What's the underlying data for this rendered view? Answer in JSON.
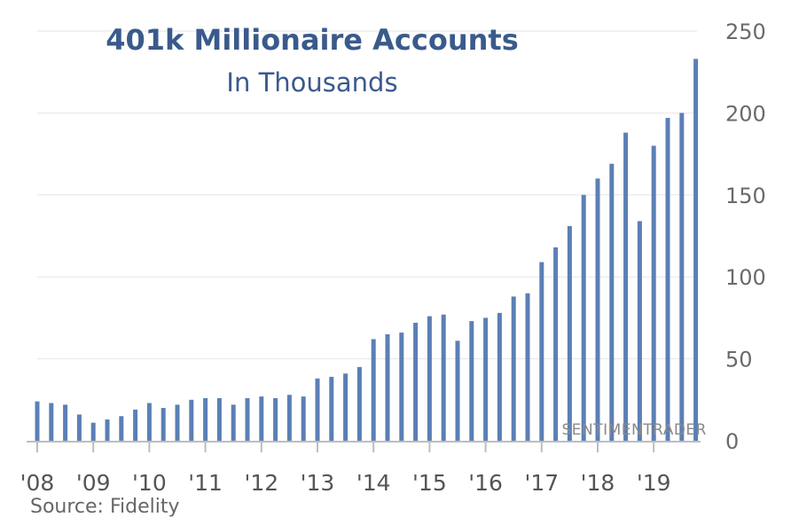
{
  "chart_data": {
    "type": "bar",
    "title": "401k Millionaire Accounts",
    "subtitle": "In Thousands",
    "source": "Source: Fidelity",
    "watermark": "SENTIMENTRADER",
    "ylim": [
      0,
      250
    ],
    "y_ticks": [
      "0",
      "50",
      "100",
      "150",
      "200",
      "250"
    ],
    "x_tick_labels": [
      "'08",
      "'09",
      "'10",
      "'11",
      "'12",
      "'13",
      "'14",
      "'15",
      "'16",
      "'17",
      "'18",
      "'19"
    ],
    "grid": "horizontal",
    "colors": {
      "bar": "#5b7fb6",
      "title": "#3a5a8c",
      "grid": "#e6e6e6"
    },
    "values": [
      24,
      23,
      22,
      16,
      11,
      13,
      15,
      19,
      23,
      20,
      22,
      25,
      26,
      26,
      22,
      26,
      27,
      26,
      28,
      27,
      38,
      39,
      41,
      45,
      62,
      65,
      66,
      72,
      76,
      77,
      61,
      73,
      75,
      78,
      88,
      90,
      109,
      118,
      131,
      150,
      160,
      169,
      188,
      134,
      180,
      197,
      200,
      233
    ]
  }
}
